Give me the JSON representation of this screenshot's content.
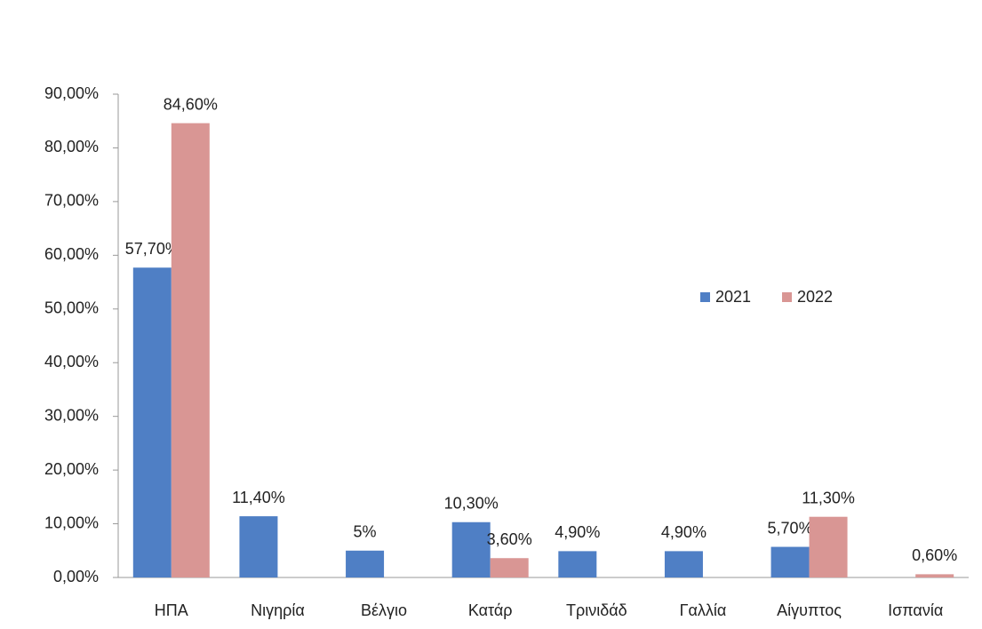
{
  "chart_data": {
    "type": "bar",
    "categories": [
      "ΗΠΑ",
      "Νιγηρία",
      "Βέλγιο",
      "Κατάρ",
      "Τρινιδάδ",
      "Γαλλία",
      "Αίγυπτος",
      "Ισπανία"
    ],
    "series": [
      {
        "name": "2021",
        "color": "#4f7fc5",
        "values": [
          57.7,
          11.4,
          5,
          10.3,
          4.9,
          4.9,
          5.7,
          null
        ],
        "value_labels": [
          "57,70%",
          "11,40%",
          "5%",
          "10,30%",
          "4,90%",
          "4,90%",
          "5,70%",
          null
        ]
      },
      {
        "name": "2022",
        "color": "#d99694",
        "values": [
          84.6,
          null,
          null,
          3.6,
          null,
          null,
          11.3,
          0.6
        ],
        "value_labels": [
          "84,60%",
          null,
          null,
          "3,60%",
          null,
          null,
          "11,30%",
          "0,60%"
        ]
      }
    ],
    "ylim": [
      0,
      90
    ],
    "yticks": [
      {
        "value": 0,
        "label": "0,00%"
      },
      {
        "value": 10,
        "label": "10,00%"
      },
      {
        "value": 20,
        "label": "20,00%"
      },
      {
        "value": 30,
        "label": "30,00%"
      },
      {
        "value": 40,
        "label": "40,00%"
      },
      {
        "value": 50,
        "label": "50,00%"
      },
      {
        "value": 60,
        "label": "60,00%"
      },
      {
        "value": 70,
        "label": "70,00%"
      },
      {
        "value": 80,
        "label": "80,00%"
      },
      {
        "value": 90,
        "label": "90,00%"
      }
    ],
    "legend": "right"
  }
}
